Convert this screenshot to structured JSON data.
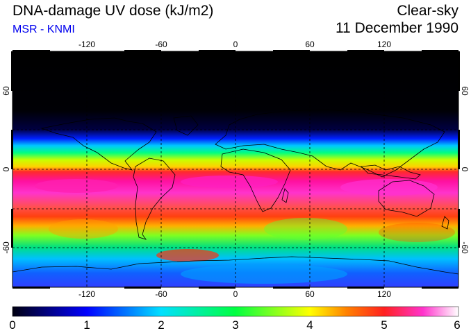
{
  "header": {
    "title": "DNA-damage UV dose (kJ/m2)",
    "source": "MSR - KNMI",
    "sky_condition": "Clear-sky",
    "date": "11 December 1990"
  },
  "map": {
    "projection": "equirectangular",
    "lon_range": [
      -180,
      180
    ],
    "lat_range": [
      -90,
      90
    ],
    "lon_ticks": [
      "-120",
      "-60",
      "0",
      "60",
      "120"
    ],
    "lat_ticks": [
      "60",
      "0",
      "-60"
    ],
    "right_lat_ticks": [
      "60",
      "0",
      "-60"
    ],
    "field": "daily DNA-damage weighted UV dose",
    "units": "kJ/m2"
  },
  "colorbar": {
    "min": 0,
    "max": 6,
    "tick_labels": [
      "0",
      "1",
      "2",
      "3",
      "4",
      "5",
      "6"
    ],
    "colors": [
      "#000010",
      "#0000ff",
      "#00e0ff",
      "#00ff40",
      "#ffff00",
      "#ff2020",
      "#ff33cc",
      "#ffffff"
    ]
  }
}
